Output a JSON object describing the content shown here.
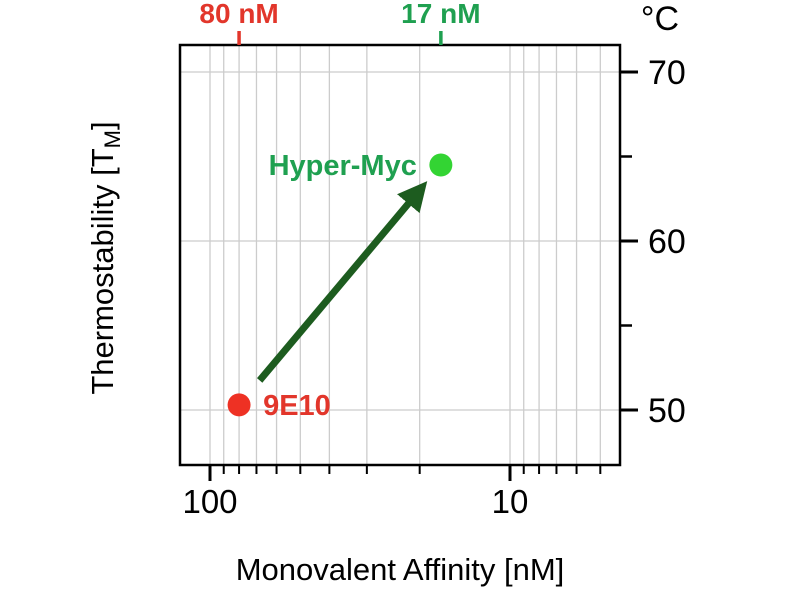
{
  "chart_data": {
    "type": "scatter",
    "title": "",
    "xlabel": "Monovalent Affinity [nM]",
    "ylabel": {
      "pre": "Thermostability [T",
      "sub": "M",
      "post": "]"
    },
    "y_unit_label": "°C",
    "x_axis": {
      "scale": "log10",
      "reversed": true,
      "major_ticks": [
        {
          "value": 100,
          "label": "100"
        },
        {
          "value": 10,
          "label": "10"
        }
      ],
      "minor_tick_values": [
        90,
        80,
        70,
        60,
        50,
        40,
        30,
        20,
        9,
        8,
        7,
        6,
        5
      ]
    },
    "y_axis": {
      "major_ticks": [
        {
          "value": 70,
          "label": "70"
        },
        {
          "value": 60,
          "label": "60"
        },
        {
          "value": 50,
          "label": "50"
        }
      ],
      "minor_tick_values": [
        65,
        55
      ]
    },
    "points": [
      {
        "name": "9E10",
        "affinity_nM": 80,
        "tm_C": 50.3,
        "dot_color": "#ee3124",
        "label_color": "#e2362b",
        "label_side": "right"
      },
      {
        "name": "Hyper-Myc",
        "affinity_nM": 17,
        "tm_C": 64.5,
        "dot_color": "#33d433",
        "label_color": "#1fa050",
        "label_side": "left"
      }
    ],
    "top_axis_annotations": [
      {
        "label": "80 nM",
        "value": 80,
        "color": "#e2362b"
      },
      {
        "label": "17 nM",
        "value": 17,
        "color": "#1fa050"
      }
    ],
    "arrow": {
      "from": "9E10",
      "to": "Hyper-Myc",
      "color": "#1d5c1f"
    },
    "colors": {
      "grid": "#cccccc",
      "axis": "#000000",
      "background": "#ffffff"
    }
  }
}
